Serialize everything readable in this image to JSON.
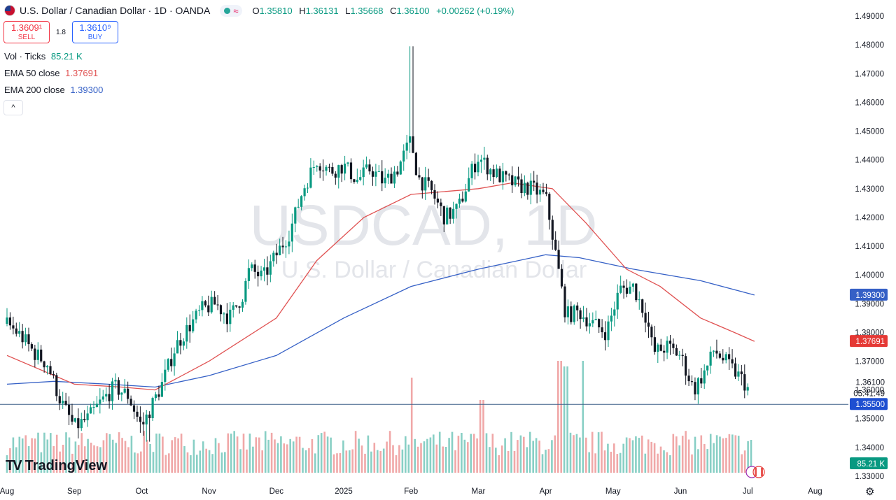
{
  "header": {
    "symbol_title": "U.S. Dollar / Canadian Dollar · 1D · OANDA",
    "wave_icon": "≈",
    "ohlc": {
      "o_label": "O",
      "o": "1.35810",
      "h_label": "H",
      "h": "1.36131",
      "l_label": "L",
      "l": "1.35668",
      "c_label": "C",
      "c": "1.36100",
      "change": "+0.00262 (+0.19%)"
    }
  },
  "trade": {
    "sell_price": "1.3609¹",
    "sell_label": "SELL",
    "spread": "1.8",
    "buy_price": "1.3610⁹",
    "buy_label": "BUY"
  },
  "indicators": {
    "vol_name": "Vol · Ticks",
    "vol_value": "85.21 K",
    "ema50_name": "EMA 50 close",
    "ema50_value": "1.37691",
    "ema200_name": "EMA 200 close",
    "ema200_value": "1.39300"
  },
  "collapse_icon": "^",
  "watermark": {
    "big": "USDCAD, 1D",
    "small": "U.S. Dollar / Canadian Dollar"
  },
  "logo_text": "TradingView",
  "colors": {
    "up": "#089981",
    "down": "#131722",
    "ema50": "#e05252",
    "ema200": "#3560c6",
    "vol_up": "#88cfc5",
    "vol_down": "#f0a8a8",
    "support": "#3c5f87"
  },
  "chart_data": {
    "type": "candlestick",
    "title": "USDCAD, 1D",
    "y_ticks": [
      "1.49000",
      "1.48000",
      "1.47000",
      "1.46000",
      "1.45000",
      "1.44000",
      "1.43000",
      "1.42000",
      "1.41000",
      "1.40000",
      "1.39000",
      "1.38000",
      "1.37000",
      "1.36000",
      "1.35000",
      "1.34000",
      "1.33000"
    ],
    "y_range": [
      1.33,
      1.49
    ],
    "x_labels": [
      "Aug",
      "Sep",
      "Oct",
      "Nov",
      "Dec",
      "2025",
      "Feb",
      "Mar",
      "Apr",
      "May",
      "Jun",
      "Jul",
      "Aug"
    ],
    "x_label_months": [
      0,
      1,
      2,
      3,
      4,
      5,
      6,
      7,
      8,
      9,
      10,
      11,
      12
    ],
    "close_series": [
      {
        "m": 0.0,
        "c": 1.383
      },
      {
        "m": 0.2,
        "c": 1.379
      },
      {
        "m": 0.4,
        "c": 1.373
      },
      {
        "m": 0.6,
        "c": 1.369
      },
      {
        "m": 0.8,
        "c": 1.356
      },
      {
        "m": 1.0,
        "c": 1.347
      },
      {
        "m": 1.2,
        "c": 1.35
      },
      {
        "m": 1.4,
        "c": 1.356
      },
      {
        "m": 1.6,
        "c": 1.361
      },
      {
        "m": 1.8,
        "c": 1.358
      },
      {
        "m": 2.0,
        "c": 1.347
      },
      {
        "m": 2.1,
        "c": 1.352
      },
      {
        "m": 2.3,
        "c": 1.362
      },
      {
        "m": 2.5,
        "c": 1.375
      },
      {
        "m": 2.7,
        "c": 1.382
      },
      {
        "m": 2.9,
        "c": 1.388
      },
      {
        "m": 3.1,
        "c": 1.39
      },
      {
        "m": 3.3,
        "c": 1.385
      },
      {
        "m": 3.5,
        "c": 1.393
      },
      {
        "m": 3.6,
        "c": 1.402
      },
      {
        "m": 3.8,
        "c": 1.399
      },
      {
        "m": 4.0,
        "c": 1.407
      },
      {
        "m": 4.2,
        "c": 1.415
      },
      {
        "m": 4.4,
        "c": 1.43
      },
      {
        "m": 4.6,
        "c": 1.44
      },
      {
        "m": 4.8,
        "c": 1.436
      },
      {
        "m": 5.0,
        "c": 1.438
      },
      {
        "m": 5.2,
        "c": 1.433
      },
      {
        "m": 5.4,
        "c": 1.437
      },
      {
        "m": 5.6,
        "c": 1.432
      },
      {
        "m": 5.8,
        "c": 1.437
      },
      {
        "m": 6.0,
        "c": 1.447
      },
      {
        "m": 6.1,
        "c": 1.434
      },
      {
        "m": 6.3,
        "c": 1.429
      },
      {
        "m": 6.5,
        "c": 1.42
      },
      {
        "m": 6.7,
        "c": 1.423
      },
      {
        "m": 6.9,
        "c": 1.436
      },
      {
        "m": 7.0,
        "c": 1.441
      },
      {
        "m": 7.2,
        "c": 1.436
      },
      {
        "m": 7.4,
        "c": 1.433
      },
      {
        "m": 7.6,
        "c": 1.431
      },
      {
        "m": 7.8,
        "c": 1.43
      },
      {
        "m": 8.0,
        "c": 1.427
      },
      {
        "m": 8.1,
        "c": 1.414
      },
      {
        "m": 8.3,
        "c": 1.386
      },
      {
        "m": 8.5,
        "c": 1.387
      },
      {
        "m": 8.7,
        "c": 1.383
      },
      {
        "m": 8.9,
        "c": 1.38
      },
      {
        "m": 9.1,
        "c": 1.395
      },
      {
        "m": 9.3,
        "c": 1.396
      },
      {
        "m": 9.5,
        "c": 1.385
      },
      {
        "m": 9.6,
        "c": 1.373
      },
      {
        "m": 9.8,
        "c": 1.375
      },
      {
        "m": 10.0,
        "c": 1.372
      },
      {
        "m": 10.2,
        "c": 1.36
      },
      {
        "m": 10.4,
        "c": 1.368
      },
      {
        "m": 10.5,
        "c": 1.374
      },
      {
        "m": 10.7,
        "c": 1.369
      },
      {
        "m": 10.9,
        "c": 1.364
      },
      {
        "m": 11.0,
        "c": 1.361
      }
    ],
    "high_low_extremes": {
      "max_high": 1.4795,
      "min_low": 1.342
    },
    "ema_50": [
      {
        "m": 0.0,
        "v": 1.372
      },
      {
        "m": 1.0,
        "v": 1.362
      },
      {
        "m": 1.7,
        "v": 1.361
      },
      {
        "m": 2.2,
        "v": 1.36
      },
      {
        "m": 3.0,
        "v": 1.37
      },
      {
        "m": 4.0,
        "v": 1.385
      },
      {
        "m": 4.6,
        "v": 1.405
      },
      {
        "m": 5.3,
        "v": 1.42
      },
      {
        "m": 6.0,
        "v": 1.428
      },
      {
        "m": 7.0,
        "v": 1.43
      },
      {
        "m": 7.5,
        "v": 1.432
      },
      {
        "m": 8.1,
        "v": 1.43
      },
      {
        "m": 8.6,
        "v": 1.418
      },
      {
        "m": 9.2,
        "v": 1.402
      },
      {
        "m": 9.7,
        "v": 1.396
      },
      {
        "m": 10.3,
        "v": 1.385
      },
      {
        "m": 10.8,
        "v": 1.38
      },
      {
        "m": 11.1,
        "v": 1.3769
      }
    ],
    "ema_200": [
      {
        "m": 0.0,
        "v": 1.362
      },
      {
        "m": 0.7,
        "v": 1.363
      },
      {
        "m": 1.5,
        "v": 1.362
      },
      {
        "m": 2.2,
        "v": 1.361
      },
      {
        "m": 3.0,
        "v": 1.365
      },
      {
        "m": 4.0,
        "v": 1.372
      },
      {
        "m": 5.0,
        "v": 1.385
      },
      {
        "m": 6.0,
        "v": 1.396
      },
      {
        "m": 7.0,
        "v": 1.402
      },
      {
        "m": 8.0,
        "v": 1.407
      },
      {
        "m": 8.5,
        "v": 1.406
      },
      {
        "m": 9.3,
        "v": 1.402
      },
      {
        "m": 10.3,
        "v": 1.398
      },
      {
        "m": 11.1,
        "v": 1.393
      }
    ],
    "support_level": 1.355,
    "price_labels": [
      {
        "text": "1.39300",
        "value": 1.393,
        "bg": "#3560c6",
        "fg": "#ffffff"
      },
      {
        "text": "1.37691",
        "value": 1.37691,
        "bg": "#e53935",
        "fg": "#ffffff"
      },
      {
        "text": "1.35500",
        "value": 1.355,
        "bg": "#1e4fd1",
        "fg": "#ffffff"
      }
    ],
    "last_price": {
      "text": "1.36100",
      "countdown": "05:41:49",
      "value": 1.361
    },
    "volume_last": "85.21 K",
    "volume_spikes": [
      {
        "m": 6.0,
        "rel": 0.85,
        "up": false
      },
      {
        "m": 7.05,
        "rel": 0.65,
        "up": false
      },
      {
        "m": 8.2,
        "rel": 1.0,
        "up": false
      },
      {
        "m": 8.3,
        "rel": 0.95,
        "up": true
      },
      {
        "m": 8.55,
        "rel": 1.0,
        "up": true
      }
    ]
  }
}
